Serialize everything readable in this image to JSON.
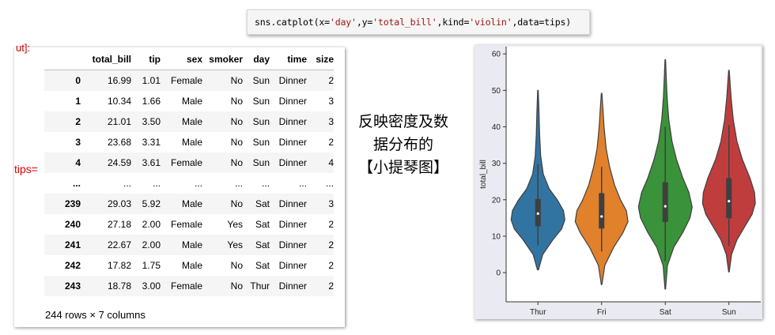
{
  "code": {
    "prefix": "sns.catplot(x=",
    "x_arg": "'day'",
    "y_sep": ",y=",
    "y_arg": "'total_bill'",
    "kind_sep": ",kind=",
    "kind_arg": "'violin'",
    "suffix": ",data=tips)"
  },
  "output": {
    "prompt_fragment": "ut]:",
    "variable_label": "tips=",
    "columns": [
      "",
      "total_bill",
      "tip",
      "sex",
      "smoker",
      "day",
      "time",
      "size"
    ],
    "rows": [
      [
        "0",
        "16.99",
        "1.01",
        "Female",
        "No",
        "Sun",
        "Dinner",
        "2"
      ],
      [
        "1",
        "10.34",
        "1.66",
        "Male",
        "No",
        "Sun",
        "Dinner",
        "3"
      ],
      [
        "2",
        "21.01",
        "3.50",
        "Male",
        "No",
        "Sun",
        "Dinner",
        "3"
      ],
      [
        "3",
        "23.68",
        "3.31",
        "Male",
        "No",
        "Sun",
        "Dinner",
        "2"
      ],
      [
        "4",
        "24.59",
        "3.61",
        "Female",
        "No",
        "Sun",
        "Dinner",
        "4"
      ],
      [
        "...",
        "...",
        "...",
        "...",
        "...",
        "...",
        "...",
        "..."
      ],
      [
        "239",
        "29.03",
        "5.92",
        "Male",
        "No",
        "Sat",
        "Dinner",
        "3"
      ],
      [
        "240",
        "27.18",
        "2.00",
        "Female",
        "Yes",
        "Sat",
        "Dinner",
        "2"
      ],
      [
        "241",
        "22.67",
        "2.00",
        "Male",
        "Yes",
        "Sat",
        "Dinner",
        "2"
      ],
      [
        "242",
        "17.82",
        "1.75",
        "Male",
        "No",
        "Sat",
        "Dinner",
        "2"
      ],
      [
        "243",
        "18.78",
        "3.00",
        "Female",
        "No",
        "Thur",
        "Dinner",
        "2"
      ]
    ],
    "row_count": "244 rows × 7 columns"
  },
  "caption": {
    "line1": "反映密度及数",
    "line2": "据分布的",
    "line3": "【小提琴图】"
  },
  "chart_data": {
    "type": "violin",
    "categories": [
      "Thur",
      "Fri",
      "Sat",
      "Sun"
    ],
    "ylabel": "total_bill",
    "xlabel": "",
    "ylim": [
      -8,
      62
    ],
    "yticks": [
      0,
      10,
      20,
      30,
      40,
      50,
      60
    ],
    "colors": [
      "#3274a1",
      "#e1812c",
      "#3a923a",
      "#c03d3e"
    ],
    "series": [
      {
        "category": "Thur",
        "min": 0.8,
        "q1": 12.7,
        "median": 16.2,
        "q3": 20.2,
        "max": 50.0,
        "whisker_low": 7.5,
        "whisker_high": 29.8,
        "density": [
          [
            0.8,
            0.02
          ],
          [
            5,
            0.18
          ],
          [
            9,
            0.55
          ],
          [
            12,
            0.88
          ],
          [
            14.5,
            1.0
          ],
          [
            17,
            0.95
          ],
          [
            20,
            0.72
          ],
          [
            23,
            0.42
          ],
          [
            27,
            0.2
          ],
          [
            32,
            0.1
          ],
          [
            38,
            0.06
          ],
          [
            44,
            0.04
          ],
          [
            50,
            0.01
          ]
        ]
      },
      {
        "category": "Fri",
        "min": -3.3,
        "q1": 12.1,
        "median": 15.4,
        "q3": 21.8,
        "max": 49.2,
        "whisker_low": 5.8,
        "whisker_high": 29.0,
        "density": [
          [
            -3.3,
            0.01
          ],
          [
            2,
            0.12
          ],
          [
            7,
            0.45
          ],
          [
            11,
            0.8
          ],
          [
            14,
            0.98
          ],
          [
            17,
            0.92
          ],
          [
            20,
            0.7
          ],
          [
            24,
            0.48
          ],
          [
            29,
            0.3
          ],
          [
            34,
            0.17
          ],
          [
            40,
            0.09
          ],
          [
            45,
            0.05
          ],
          [
            49.2,
            0.01
          ]
        ]
      },
      {
        "category": "Sat",
        "min": -4.5,
        "q1": 13.9,
        "median": 18.2,
        "q3": 24.8,
        "max": 58.4,
        "whisker_low": 3.1,
        "whisker_high": 40.0,
        "density": [
          [
            -4.5,
            0.01
          ],
          [
            2,
            0.08
          ],
          [
            7,
            0.32
          ],
          [
            11,
            0.65
          ],
          [
            15,
            0.92
          ],
          [
            18,
            1.0
          ],
          [
            22,
            0.88
          ],
          [
            26,
            0.65
          ],
          [
            31,
            0.42
          ],
          [
            36,
            0.25
          ],
          [
            42,
            0.13
          ],
          [
            48,
            0.07
          ],
          [
            53,
            0.04
          ],
          [
            58.4,
            0.01
          ]
        ]
      },
      {
        "category": "Sun",
        "min": 0.2,
        "q1": 14.9,
        "median": 19.6,
        "q3": 25.9,
        "max": 55.5,
        "whisker_low": 7.3,
        "whisker_high": 40.5,
        "density": [
          [
            0.2,
            0.01
          ],
          [
            5,
            0.1
          ],
          [
            9,
            0.3
          ],
          [
            13,
            0.62
          ],
          [
            16,
            0.86
          ],
          [
            19,
            0.98
          ],
          [
            22,
            0.95
          ],
          [
            26,
            0.78
          ],
          [
            31,
            0.5
          ],
          [
            36,
            0.3
          ],
          [
            42,
            0.16
          ],
          [
            48,
            0.08
          ],
          [
            55.5,
            0.01
          ]
        ]
      }
    ]
  }
}
